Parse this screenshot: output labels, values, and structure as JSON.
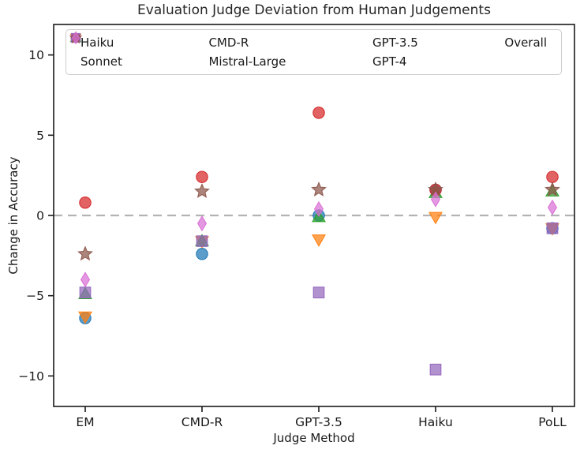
{
  "chart_data": {
    "type": "scatter",
    "title": "Evaluation Judge Deviation from Human Judgements",
    "xlabel": "Judge Method",
    "ylabel": "Change in Accuracy",
    "categories": [
      "EM",
      "CMD-R",
      "GPT-3.5",
      "Haiku",
      "PoLL"
    ],
    "yticks": [
      -10,
      -5,
      0,
      5,
      10
    ],
    "ylim": [
      -11.9,
      11.9
    ],
    "grid": false,
    "legend_position": "upper center inside plot, 2 rows x 4 columns",
    "zero_line": {
      "y": 0,
      "style": "dashed",
      "color": "#b3b3b3"
    },
    "frame_color": "#1a1a1a",
    "series": [
      {
        "name": "Haiku",
        "marker": "circle",
        "color": "#1f77b4",
        "values": [
          -6.4,
          -2.4,
          0.0,
          1.6,
          -0.8
        ]
      },
      {
        "name": "Sonnet",
        "marker": "triangle-down",
        "color": "#ff7f0e",
        "values": [
          -6.3,
          -1.6,
          -1.5,
          -0.1,
          -0.8
        ]
      },
      {
        "name": "CMD-R",
        "marker": "triangle-up",
        "color": "#2ca02c",
        "values": [
          -4.9,
          -1.6,
          -0.1,
          1.4,
          1.5
        ]
      },
      {
        "name": "Mistral-Large",
        "marker": "circle",
        "color": "#d62728",
        "values": [
          0.8,
          2.4,
          6.4,
          1.6,
          2.4
        ]
      },
      {
        "name": "GPT-3.5",
        "marker": "square",
        "color": "#9467bd",
        "values": [
          -4.8,
          -1.6,
          -4.8,
          -9.6,
          -0.8
        ]
      },
      {
        "name": "GPT-4",
        "marker": "star",
        "color": "#8c564b",
        "values": [
          -2.4,
          1.5,
          1.6,
          1.6,
          1.6
        ]
      },
      {
        "name": "Overall",
        "marker": "diamond",
        "color": "#da70d6",
        "values": [
          -4.0,
          -0.5,
          0.4,
          1.0,
          0.5
        ]
      }
    ]
  }
}
